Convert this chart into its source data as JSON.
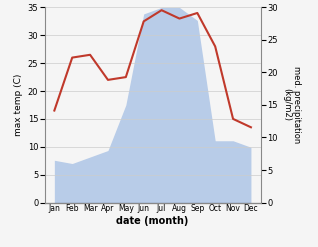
{
  "months": [
    "Jan",
    "Feb",
    "Mar",
    "Apr",
    "May",
    "Jun",
    "Jul",
    "Aug",
    "Sep",
    "Oct",
    "Nov",
    "Dec"
  ],
  "temperature": [
    16.5,
    26.0,
    26.5,
    22.0,
    22.5,
    32.5,
    34.5,
    33.0,
    34.0,
    28.0,
    15.0,
    13.5
  ],
  "precipitation": [
    6.5,
    6.0,
    7.0,
    8.0,
    15.0,
    29.0,
    30.0,
    30.0,
    28.0,
    9.5,
    9.5,
    8.5
  ],
  "temp_color": "#c0392b",
  "precip_color_fill": "#b8cce8",
  "temp_ylim": [
    0,
    35
  ],
  "precip_ylim": [
    0,
    30
  ],
  "temp_yticks": [
    0,
    5,
    10,
    15,
    20,
    25,
    30,
    35
  ],
  "precip_yticks": [
    0,
    5,
    10,
    15,
    20,
    25,
    30
  ],
  "xlabel": "date (month)",
  "ylabel_left": "max temp (C)",
  "ylabel_right": "med. precipitation\n(kg/m2)",
  "bg_color": "#f5f5f5"
}
